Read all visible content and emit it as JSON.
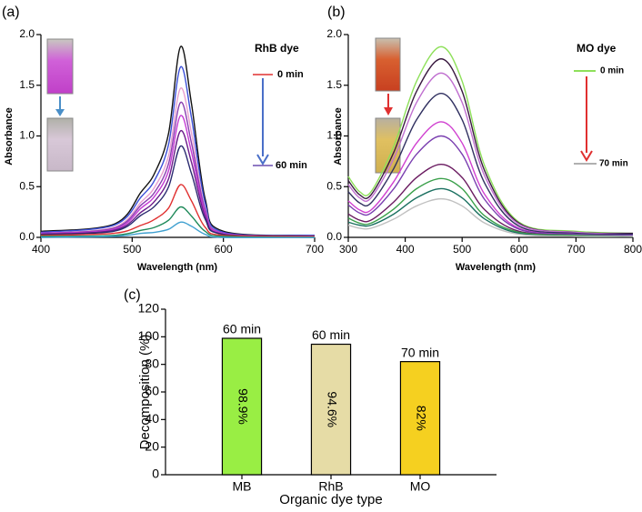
{
  "chart_data": [
    {
      "type": "line",
      "label": "(a)",
      "dye_label": "RhB dye",
      "start_label": "0 min",
      "end_label": "60 min",
      "x_label": "Wavelength (nm)",
      "y_label": "Absorbance",
      "x": [
        400,
        480,
        510,
        525,
        540,
        553,
        565,
        580,
        600,
        700
      ],
      "xlim": [
        400,
        700
      ],
      "xticks": [
        400,
        500,
        600,
        700
      ],
      "ylim": [
        0,
        2
      ],
      "yticks": [
        {
          "value": 0,
          "label": "0.0"
        },
        0.5,
        {
          "value": 1,
          "label": "1.0"
        },
        1.5,
        {
          "value": 2,
          "label": "2.0"
        }
      ],
      "series": [
        {
          "color": "#111111",
          "values": [
            0.06,
            0.13,
            0.45,
            0.64,
            1.03,
            1.88,
            1.32,
            0.38,
            0.06,
            0.02
          ]
        },
        {
          "color": "#3b4fd8",
          "values": [
            0.05,
            0.12,
            0.4,
            0.57,
            0.92,
            1.68,
            1.18,
            0.34,
            0.05,
            0.02
          ]
        },
        {
          "color": "#e8a0d0",
          "values": [
            0.04,
            0.1,
            0.35,
            0.5,
            0.81,
            1.47,
            1.03,
            0.29,
            0.04,
            0.01
          ]
        },
        {
          "color": "#8a3fb0",
          "values": [
            0.04,
            0.09,
            0.32,
            0.45,
            0.73,
            1.33,
            0.93,
            0.27,
            0.04,
            0.01
          ]
        },
        {
          "color": "#c43ad4",
          "values": [
            0.04,
            0.08,
            0.29,
            0.41,
            0.66,
            1.2,
            0.84,
            0.24,
            0.04,
            0.01
          ]
        },
        {
          "color": "#6b1c8a",
          "values": [
            0.03,
            0.07,
            0.25,
            0.36,
            0.58,
            1.05,
            0.74,
            0.21,
            0.03,
            0.01
          ]
        },
        {
          "color": "#2a2a70",
          "values": [
            0.03,
            0.06,
            0.22,
            0.31,
            0.5,
            0.9,
            0.63,
            0.18,
            0.03,
            0.01
          ]
        },
        {
          "color": "#e03030",
          "values": [
            0.02,
            0.04,
            0.12,
            0.18,
            0.29,
            0.52,
            0.36,
            0.1,
            0.02,
            0.01
          ]
        },
        {
          "color": "#1f8a5a",
          "values": [
            0.01,
            0.02,
            0.07,
            0.1,
            0.17,
            0.3,
            0.21,
            0.06,
            0.01,
            0.0
          ]
        },
        {
          "color": "#3fa0d0",
          "values": [
            0.0,
            0.01,
            0.04,
            0.05,
            0.08,
            0.15,
            0.11,
            0.03,
            0.0,
            0.0
          ]
        }
      ]
    },
    {
      "type": "line",
      "label": "(b)",
      "dye_label": "MO dye",
      "start_label": "0 min",
      "end_label": "70 min",
      "x_label": "Wavelength (nm)",
      "y_label": "Absorbance",
      "x": [
        300,
        320,
        340,
        380,
        420,
        463,
        500,
        540,
        600,
        700,
        800
      ],
      "xlim": [
        300,
        800
      ],
      "xticks": [
        300,
        400,
        500,
        600,
        700,
        800
      ],
      "ylim": [
        0,
        2
      ],
      "yticks": [
        {
          "value": 0,
          "label": "0.0"
        },
        0.5,
        {
          "value": 1,
          "label": "1.0"
        },
        1.5,
        {
          "value": 2,
          "label": "2.0"
        }
      ],
      "series": [
        {
          "color": "#8ee05a",
          "values": [
            0.6,
            0.45,
            0.45,
            0.9,
            1.54,
            1.88,
            1.54,
            0.7,
            0.15,
            0.06,
            0.04
          ]
        },
        {
          "color": "#3a1a40",
          "values": [
            0.56,
            0.42,
            0.42,
            0.84,
            1.44,
            1.76,
            1.44,
            0.65,
            0.14,
            0.05,
            0.04
          ]
        },
        {
          "color": "#c070d0",
          "values": [
            0.52,
            0.39,
            0.39,
            0.78,
            1.33,
            1.62,
            1.33,
            0.6,
            0.13,
            0.05,
            0.03
          ]
        },
        {
          "color": "#303060",
          "values": [
            0.45,
            0.34,
            0.34,
            0.68,
            1.16,
            1.42,
            1.16,
            0.53,
            0.11,
            0.04,
            0.03
          ]
        },
        {
          "color": "#d040d0",
          "values": [
            0.36,
            0.27,
            0.27,
            0.55,
            0.93,
            1.14,
            0.93,
            0.42,
            0.09,
            0.03,
            0.02
          ]
        },
        {
          "color": "#7a3fb0",
          "values": [
            0.32,
            0.24,
            0.24,
            0.48,
            0.82,
            1.0,
            0.82,
            0.37,
            0.08,
            0.03,
            0.02
          ]
        },
        {
          "color": "#6a1a60",
          "values": [
            0.23,
            0.17,
            0.17,
            0.35,
            0.59,
            0.72,
            0.59,
            0.27,
            0.06,
            0.02,
            0.01
          ]
        },
        {
          "color": "#3aa04a",
          "values": [
            0.19,
            0.14,
            0.14,
            0.28,
            0.48,
            0.58,
            0.48,
            0.21,
            0.05,
            0.02,
            0.01
          ]
        },
        {
          "color": "#1a7060",
          "values": [
            0.15,
            0.12,
            0.12,
            0.23,
            0.39,
            0.48,
            0.39,
            0.18,
            0.04,
            0.01,
            0.01
          ]
        },
        {
          "color": "#c0c0c0",
          "values": [
            0.12,
            0.09,
            0.09,
            0.18,
            0.31,
            0.38,
            0.31,
            0.14,
            0.03,
            0.01,
            0.01
          ]
        }
      ]
    },
    {
      "type": "bar",
      "label": "(c)",
      "x_label": "Organic dye type",
      "y_label": "Decomposition (%)",
      "categories": [
        "MB",
        "RhB",
        "MO"
      ],
      "values": [
        98.9,
        94.6,
        82
      ],
      "value_labels": [
        "98.9%",
        "94.6%",
        "82%"
      ],
      "top_labels": [
        "60 min",
        "60 min",
        "70 min"
      ],
      "colors": [
        "#99ee44",
        "#e6dca6",
        "#f5d020"
      ],
      "ylim": [
        0,
        120
      ],
      "yticks": [
        0,
        20,
        40,
        60,
        80,
        100,
        120
      ]
    }
  ]
}
